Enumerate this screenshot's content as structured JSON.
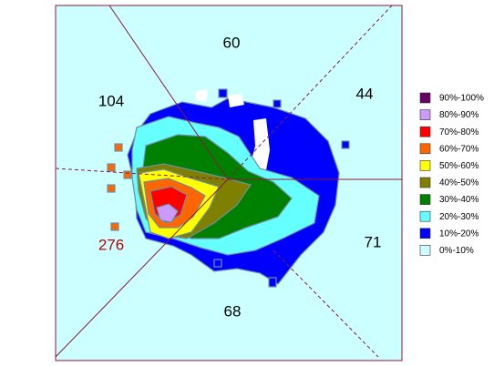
{
  "chart_data": {
    "type": "heatmap",
    "regions": [
      {
        "value": 60,
        "color": "#000000"
      },
      {
        "value": 104,
        "color": "#000000"
      },
      {
        "value": 44,
        "color": "#000000"
      },
      {
        "value": 276,
        "color": "#c00000"
      },
      {
        "value": 71,
        "color": "#000000"
      },
      {
        "value": 68,
        "color": "#000000"
      }
    ],
    "legend": [
      {
        "name": "90%-100%",
        "color": "#660066"
      },
      {
        "name": "80%-90%",
        "color": "#cc99ff"
      },
      {
        "name": "70%-80%",
        "color": "#ff0000"
      },
      {
        "name": "60%-70%",
        "color": "#ff6600"
      },
      {
        "name": "50%-60%",
        "color": "#ffff00"
      },
      {
        "name": "40%-50%",
        "color": "#808000"
      },
      {
        "name": "30%-40%",
        "color": "#008000"
      },
      {
        "name": "20%-30%",
        "color": "#66ffff"
      },
      {
        "name": "10%-20%",
        "color": "#0000ff"
      },
      {
        "name": "0%-10%",
        "color": "#ccffff"
      }
    ]
  }
}
